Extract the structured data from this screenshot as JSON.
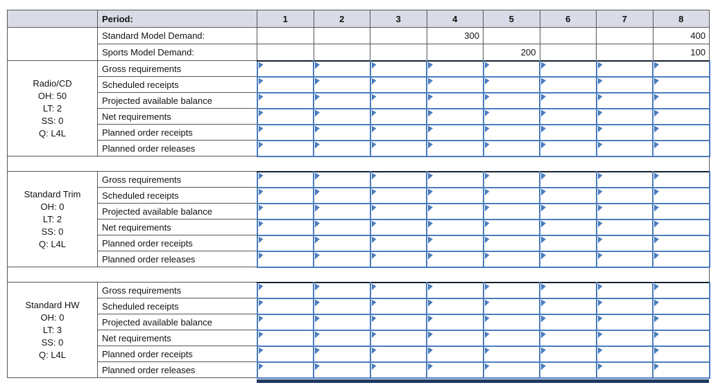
{
  "table": {
    "period_label": "Period:",
    "columns": [
      "1",
      "2",
      "3",
      "4",
      "5",
      "6",
      "7",
      "8"
    ],
    "demand_rows": [
      {
        "label": "Standard Model Demand:",
        "values": [
          "",
          "",
          "",
          "300",
          "",
          "",
          "",
          "400"
        ]
      },
      {
        "label": "Sports Model Demand:",
        "values": [
          "",
          "",
          "",
          "",
          "200",
          "",
          "",
          "100"
        ]
      }
    ],
    "row_labels": [
      "Gross requirements",
      "Scheduled receipts",
      "Projected available balance",
      "Net requirements",
      "Planned order receipts",
      "Planned order releases"
    ],
    "blocks": [
      {
        "item": "Radio/CD",
        "details": [
          "OH: 50",
          "LT: 2",
          "SS: 0",
          "Q: L4L"
        ]
      },
      {
        "item": "Standard Trim",
        "details": [
          "OH: 0",
          "LT: 2",
          "SS: 0",
          "Q: L4L"
        ]
      },
      {
        "item": "Standard HW",
        "details": [
          "OH: 0",
          "LT: 3",
          "SS: 0",
          "Q: L4L"
        ]
      }
    ],
    "input_cell_value": "",
    "colors": {
      "input_border": "#4a7cbe",
      "marker": "#4a7cbe",
      "header_bg": "#d9dce6",
      "grid_line": "#555555",
      "cutoff_bar": "#203a61"
    }
  }
}
